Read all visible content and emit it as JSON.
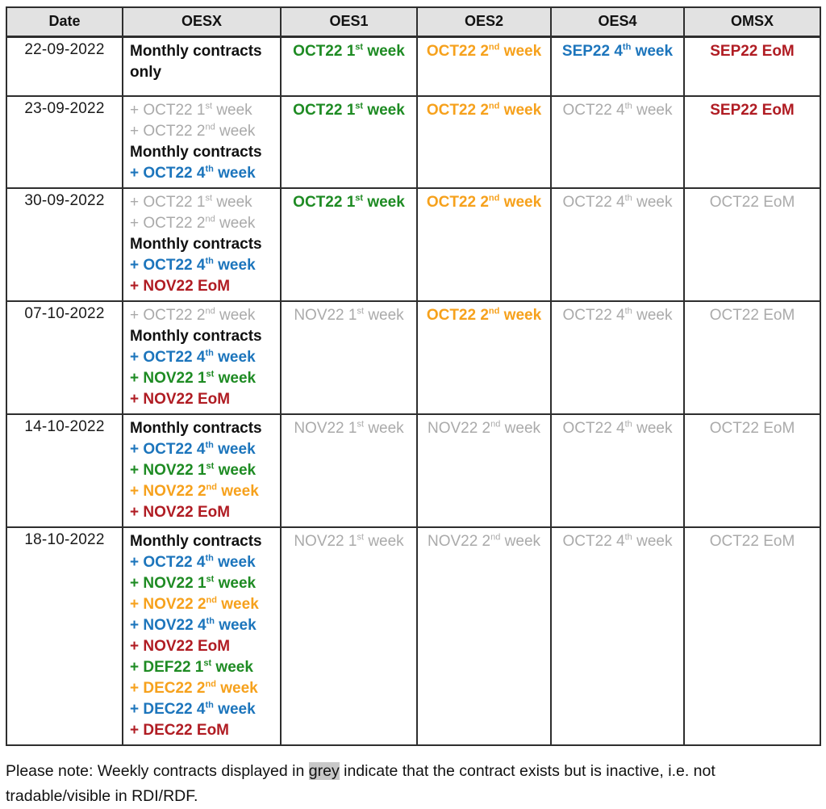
{
  "palette": {
    "active_green": "#1e8b23",
    "active_orange": "#f6a11c",
    "active_blue": "#1c75bc",
    "active_red": "#b01c23",
    "inactive_grey": "#aaaaaa",
    "header_background": "#e2e2e2",
    "note_highlight_background": "#c8c8c8"
  },
  "table": {
    "headers": [
      "Date",
      "OESX",
      "OES1",
      "OES2",
      "OES4",
      "OMSX"
    ],
    "rows": [
      {
        "date": "22-09-2022",
        "oesx": [
          {
            "pre": "Monthly contracts only",
            "tone": "black"
          }
        ],
        "oes1": {
          "pre": "OCT22 1",
          "sup": "st",
          "post": " week",
          "tone": "green"
        },
        "oes2": {
          "pre": "OCT22 2",
          "sup": "nd",
          "post": " week",
          "tone": "orange"
        },
        "oes4": {
          "pre": "SEP22 4",
          "sup": "th",
          "post": " week",
          "tone": "blue"
        },
        "omsx": {
          "pre": "SEP22 EoM",
          "tone": "red"
        }
      },
      {
        "date": "23-09-2022",
        "oesx": [
          {
            "pre": "+ OCT22 1",
            "sup": "st",
            "post": " week",
            "tone": "grey"
          },
          {
            "pre": "+ OCT22 2",
            "sup": "nd",
            "post": " week",
            "tone": "grey"
          },
          {
            "pre": "Monthly contracts",
            "tone": "black"
          },
          {
            "pre": "+ OCT22 4",
            "sup": "th",
            "post": " week",
            "tone": "blue"
          }
        ],
        "oes1": {
          "pre": "OCT22 1",
          "sup": "st",
          "post": " week",
          "tone": "green"
        },
        "oes2": {
          "pre": "OCT22 2",
          "sup": "nd",
          "post": " week",
          "tone": "orange"
        },
        "oes4": {
          "pre": "OCT22 4",
          "sup": "th",
          "post": " week",
          "tone": "grey"
        },
        "omsx": {
          "pre": "SEP22 EoM",
          "tone": "red"
        }
      },
      {
        "date": "30-09-2022",
        "oesx": [
          {
            "pre": "+ OCT22 1",
            "sup": "st",
            "post": " week",
            "tone": "grey"
          },
          {
            "pre": "+ OCT22 2",
            "sup": "nd",
            "post": " week",
            "tone": "grey"
          },
          {
            "pre": "Monthly contracts",
            "tone": "black"
          },
          {
            "pre": "+ OCT22 4",
            "sup": "th",
            "post": " week",
            "tone": "blue"
          },
          {
            "pre": "+ NOV22 EoM",
            "tone": "red"
          }
        ],
        "oes1": {
          "pre": "OCT22 1",
          "sup": "st",
          "post": " week",
          "tone": "green"
        },
        "oes2": {
          "pre": "OCT22 2",
          "sup": "nd",
          "post": " week",
          "tone": "orange"
        },
        "oes4": {
          "pre": "OCT22 4",
          "sup": "th",
          "post": " week",
          "tone": "grey"
        },
        "omsx": {
          "pre": "OCT22 EoM",
          "tone": "grey"
        }
      },
      {
        "date": "07-10-2022",
        "oesx": [
          {
            "pre": "+ OCT22 2",
            "sup": "nd",
            "post": " week",
            "tone": "grey"
          },
          {
            "pre": "Monthly contracts",
            "tone": "black"
          },
          {
            "pre": "+ OCT22 4",
            "sup": "th",
            "post": " week",
            "tone": "blue"
          },
          {
            "pre": "+ NOV22 1",
            "sup": "st",
            "post": " week",
            "tone": "green"
          },
          {
            "pre": "+ NOV22 EoM",
            "tone": "red"
          }
        ],
        "oes1": {
          "pre": "NOV22 1",
          "sup": "st",
          "post": " week",
          "tone": "grey"
        },
        "oes2": {
          "pre": "OCT22 2",
          "sup": "nd",
          "post": " week",
          "tone": "orange"
        },
        "oes4": {
          "pre": "OCT22 4",
          "sup": "th",
          "post": " week",
          "tone": "grey"
        },
        "omsx": {
          "pre": "OCT22 EoM",
          "tone": "grey"
        }
      },
      {
        "date": "14-10-2022",
        "oesx": [
          {
            "pre": "Monthly contracts",
            "tone": "black"
          },
          {
            "pre": "+ OCT22 4",
            "sup": "th",
            "post": " week",
            "tone": "blue"
          },
          {
            "pre": "+ NOV22 1",
            "sup": "st",
            "post": " week",
            "tone": "green"
          },
          {
            "pre": "+ NOV22 2",
            "sup": "nd",
            "post": " week",
            "tone": "orange"
          },
          {
            "pre": "+ NOV22 EoM",
            "tone": "red"
          }
        ],
        "oes1": {
          "pre": "NOV22 1",
          "sup": "st",
          "post": " week",
          "tone": "grey"
        },
        "oes2": {
          "pre": "NOV22 2",
          "sup": "nd",
          "post": " week",
          "tone": "grey"
        },
        "oes4": {
          "pre": "OCT22 4",
          "sup": "th",
          "post": " week",
          "tone": "grey"
        },
        "omsx": {
          "pre": "OCT22 EoM",
          "tone": "grey"
        }
      },
      {
        "date": "18-10-2022",
        "oesx": [
          {
            "pre": "Monthly contracts",
            "tone": "black"
          },
          {
            "pre": "+ OCT22 4",
            "sup": "th",
            "post": " week",
            "tone": "blue"
          },
          {
            "pre": "+ NOV22 1",
            "sup": "st",
            "post": " week",
            "tone": "green"
          },
          {
            "pre": "+ NOV22 2",
            "sup": "nd",
            "post": " week",
            "tone": "orange"
          },
          {
            "pre": "+ NOV22 4",
            "sup": "th",
            "post": " week",
            "tone": "blue"
          },
          {
            "pre": "+ NOV22 EoM",
            "tone": "red"
          },
          {
            "pre": "+ DEF22 1",
            "sup": "st",
            "post": " week",
            "tone": "green"
          },
          {
            "pre": "+ DEC22 2",
            "sup": "nd",
            "post": " week",
            "tone": "orange"
          },
          {
            "pre": "+ DEC22 4",
            "sup": "th",
            "post": " week",
            "tone": "blue"
          },
          {
            "pre": "+ DEC22 EoM",
            "tone": "red"
          }
        ],
        "oes1": {
          "pre": "NOV22 1",
          "sup": "st",
          "post": " week",
          "tone": "grey"
        },
        "oes2": {
          "pre": "NOV22 2",
          "sup": "nd",
          "post": " week",
          "tone": "grey"
        },
        "oes4": {
          "pre": "OCT22 4",
          "sup": "th",
          "post": " week",
          "tone": "grey"
        },
        "omsx": {
          "pre": "OCT22 EoM",
          "tone": "grey"
        }
      }
    ]
  },
  "note": {
    "part1": "Please note: Weekly contracts displayed in ",
    "highlight": "grey",
    "part2": " indicate that the contract exists but is inactive, i.e. not tradable/visible in RDI/RDF."
  }
}
